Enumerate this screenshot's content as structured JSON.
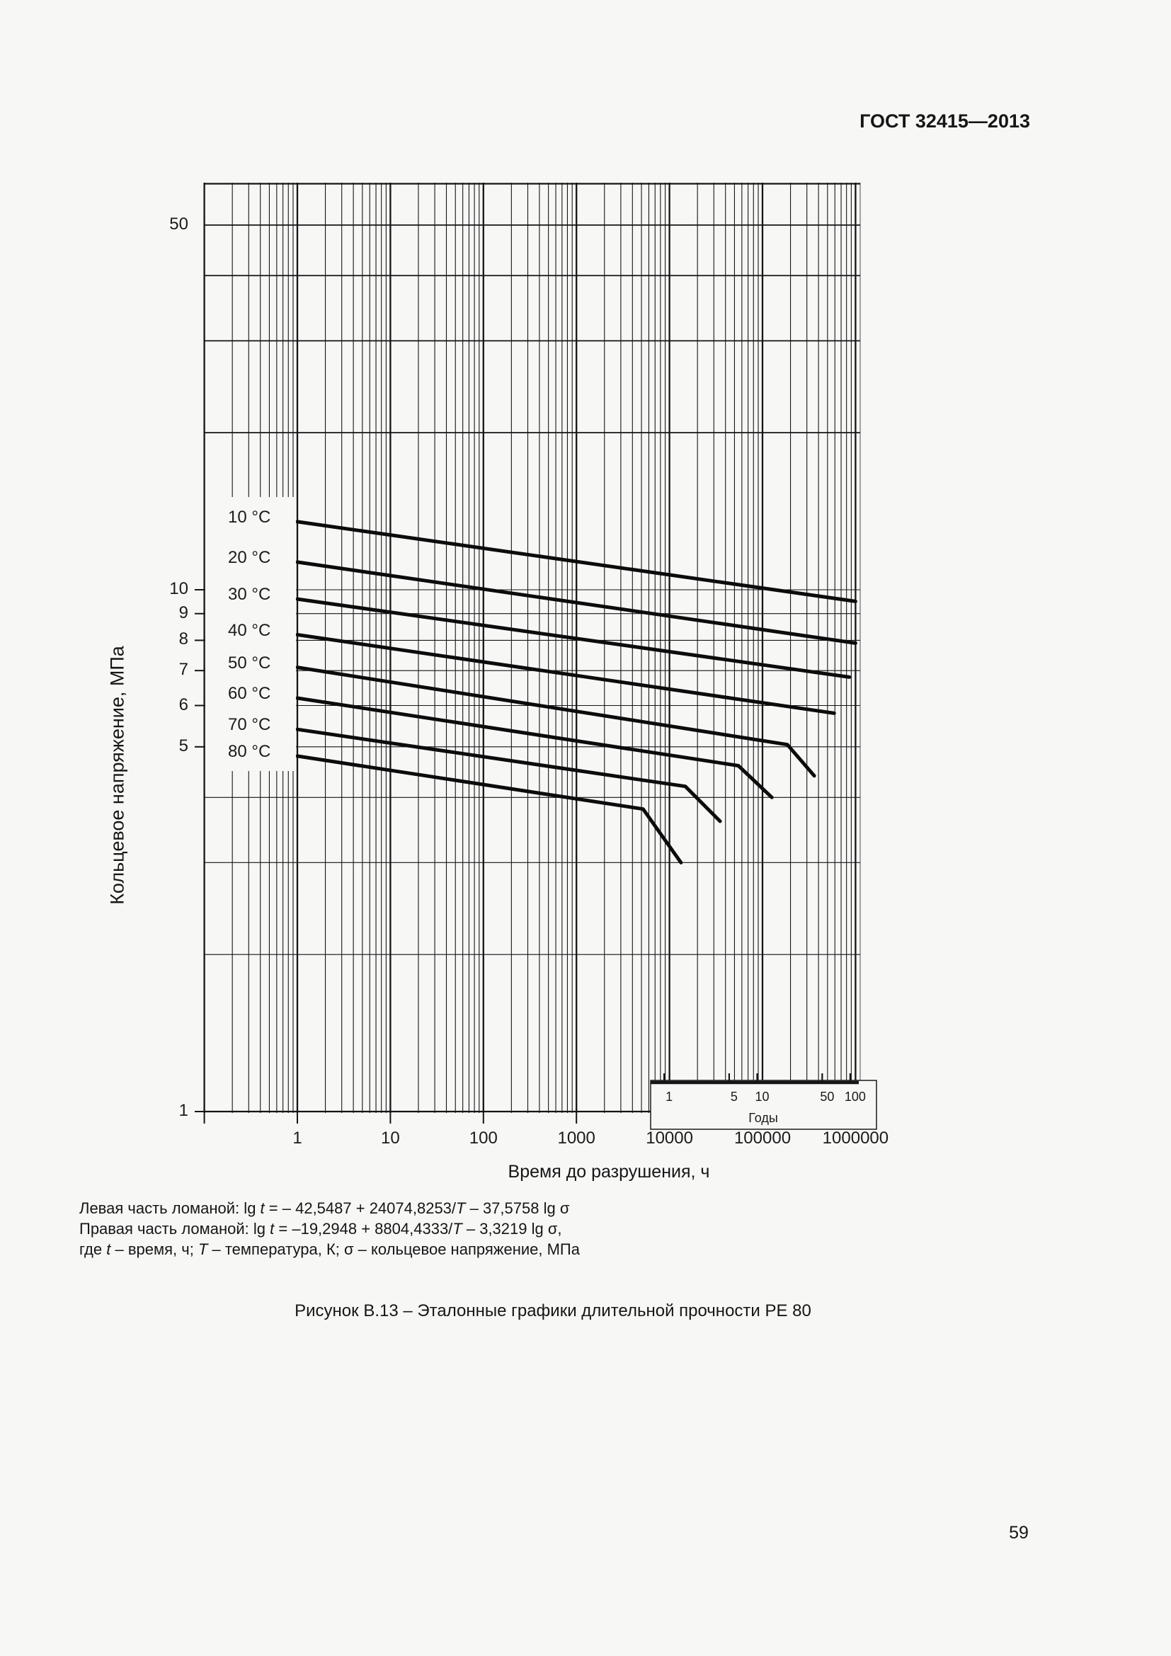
{
  "page": {
    "header": "ГОСТ 32415—2013",
    "caption": "Рисунок В.13 – Эталонные графики длительной прочности РЕ 80",
    "page_number": "59"
  },
  "chart": {
    "y_axis_title": "Кольцевое напряжение, МПа",
    "x_axis_title": "Время до разрушения, ч",
    "y_tick_labels": [
      {
        "v": 50,
        "label": "50"
      },
      {
        "v": 10,
        "label": "10"
      },
      {
        "v": 9,
        "label": "9"
      },
      {
        "v": 8,
        "label": "8"
      },
      {
        "v": 7,
        "label": "7"
      },
      {
        "v": 6,
        "label": "6"
      },
      {
        "v": 5,
        "label": "5"
      },
      {
        "v": 1,
        "label": "1"
      }
    ],
    "x_tick_labels": [
      {
        "v": 1,
        "label": "1"
      },
      {
        "v": 10,
        "label": "10"
      },
      {
        "v": 100,
        "label": "100"
      },
      {
        "v": 1000,
        "label": "1000"
      },
      {
        "v": 10000,
        "label": "10000"
      },
      {
        "v": 100000,
        "label": "100000"
      },
      {
        "v": 1000000,
        "label": "1000000"
      }
    ],
    "years_axis": {
      "title": "Годы",
      "hours_per_year": 8766,
      "ticks": [
        {
          "v": 1,
          "label": "1"
        },
        {
          "v": 5,
          "label": "5"
        },
        {
          "v": 10,
          "label": "10"
        },
        {
          "v": 50,
          "label": "50"
        },
        {
          "v": 100,
          "label": "100"
        }
      ]
    }
  },
  "chart_data": {
    "type": "line",
    "title": "Эталонные графики длительной прочности РЕ 80",
    "xlabel": "Время до разрушения, ч",
    "ylabel": "Кольцевое напряжение, МПа",
    "x_scale": "log",
    "y_scale": "log",
    "xlim": [
      0.1,
      1000000
    ],
    "ylim": [
      1,
      60
    ],
    "grid": true,
    "legend_position": "left-inside",
    "series": [
      {
        "name": "10 °C",
        "points": [
          [
            1,
            13.5
          ],
          [
            1000000,
            9.5
          ]
        ]
      },
      {
        "name": "20 °C",
        "points": [
          [
            1,
            11.3
          ],
          [
            1000000,
            7.9
          ]
        ]
      },
      {
        "name": "30 °C",
        "points": [
          [
            1,
            9.6
          ],
          [
            860000,
            6.8
          ]
        ]
      },
      {
        "name": "40 °C",
        "points": [
          [
            1,
            8.2
          ],
          [
            590000,
            5.8
          ]
        ]
      },
      {
        "name": "50 °C",
        "points": [
          [
            1,
            7.1
          ],
          [
            185000,
            5.05
          ],
          [
            360000,
            4.4
          ]
        ]
      },
      {
        "name": "60 °C",
        "points": [
          [
            1,
            6.2
          ],
          [
            55000,
            4.6
          ],
          [
            126000,
            4.0
          ]
        ]
      },
      {
        "name": "70 °C",
        "points": [
          [
            1,
            5.4
          ],
          [
            14800,
            4.2
          ],
          [
            35000,
            3.6
          ]
        ]
      },
      {
        "name": "80 °C",
        "points": [
          [
            1,
            4.8
          ],
          [
            5200,
            3.8
          ],
          [
            13300,
            3.0
          ]
        ]
      }
    ]
  },
  "formulas": {
    "lines": [
      {
        "segments": [
          {
            "t": "Левая часть ломаной: lg "
          },
          {
            "t": "t",
            "i": 1
          },
          {
            "t": " = – 42,5487 + 24074,8253/"
          },
          {
            "t": "T",
            "i": 1
          },
          {
            "t": " – 37,5758 lg σ"
          }
        ]
      },
      {
        "segments": [
          {
            "t": "Правая часть ломаной: lg "
          },
          {
            "t": "t",
            "i": 1
          },
          {
            "t": " = –19,2948 + 8804,4333/"
          },
          {
            "t": "T",
            "i": 1
          },
          {
            "t": " – 3,3219 lg σ,"
          }
        ]
      },
      {
        "segments": [
          {
            "t": "где "
          },
          {
            "t": "t",
            "i": 1
          },
          {
            "t": " – время, ч; "
          },
          {
            "t": "T",
            "i": 1
          },
          {
            "t": " – температура, К; σ – кольцевое напряжение, МПа"
          }
        ]
      }
    ]
  }
}
